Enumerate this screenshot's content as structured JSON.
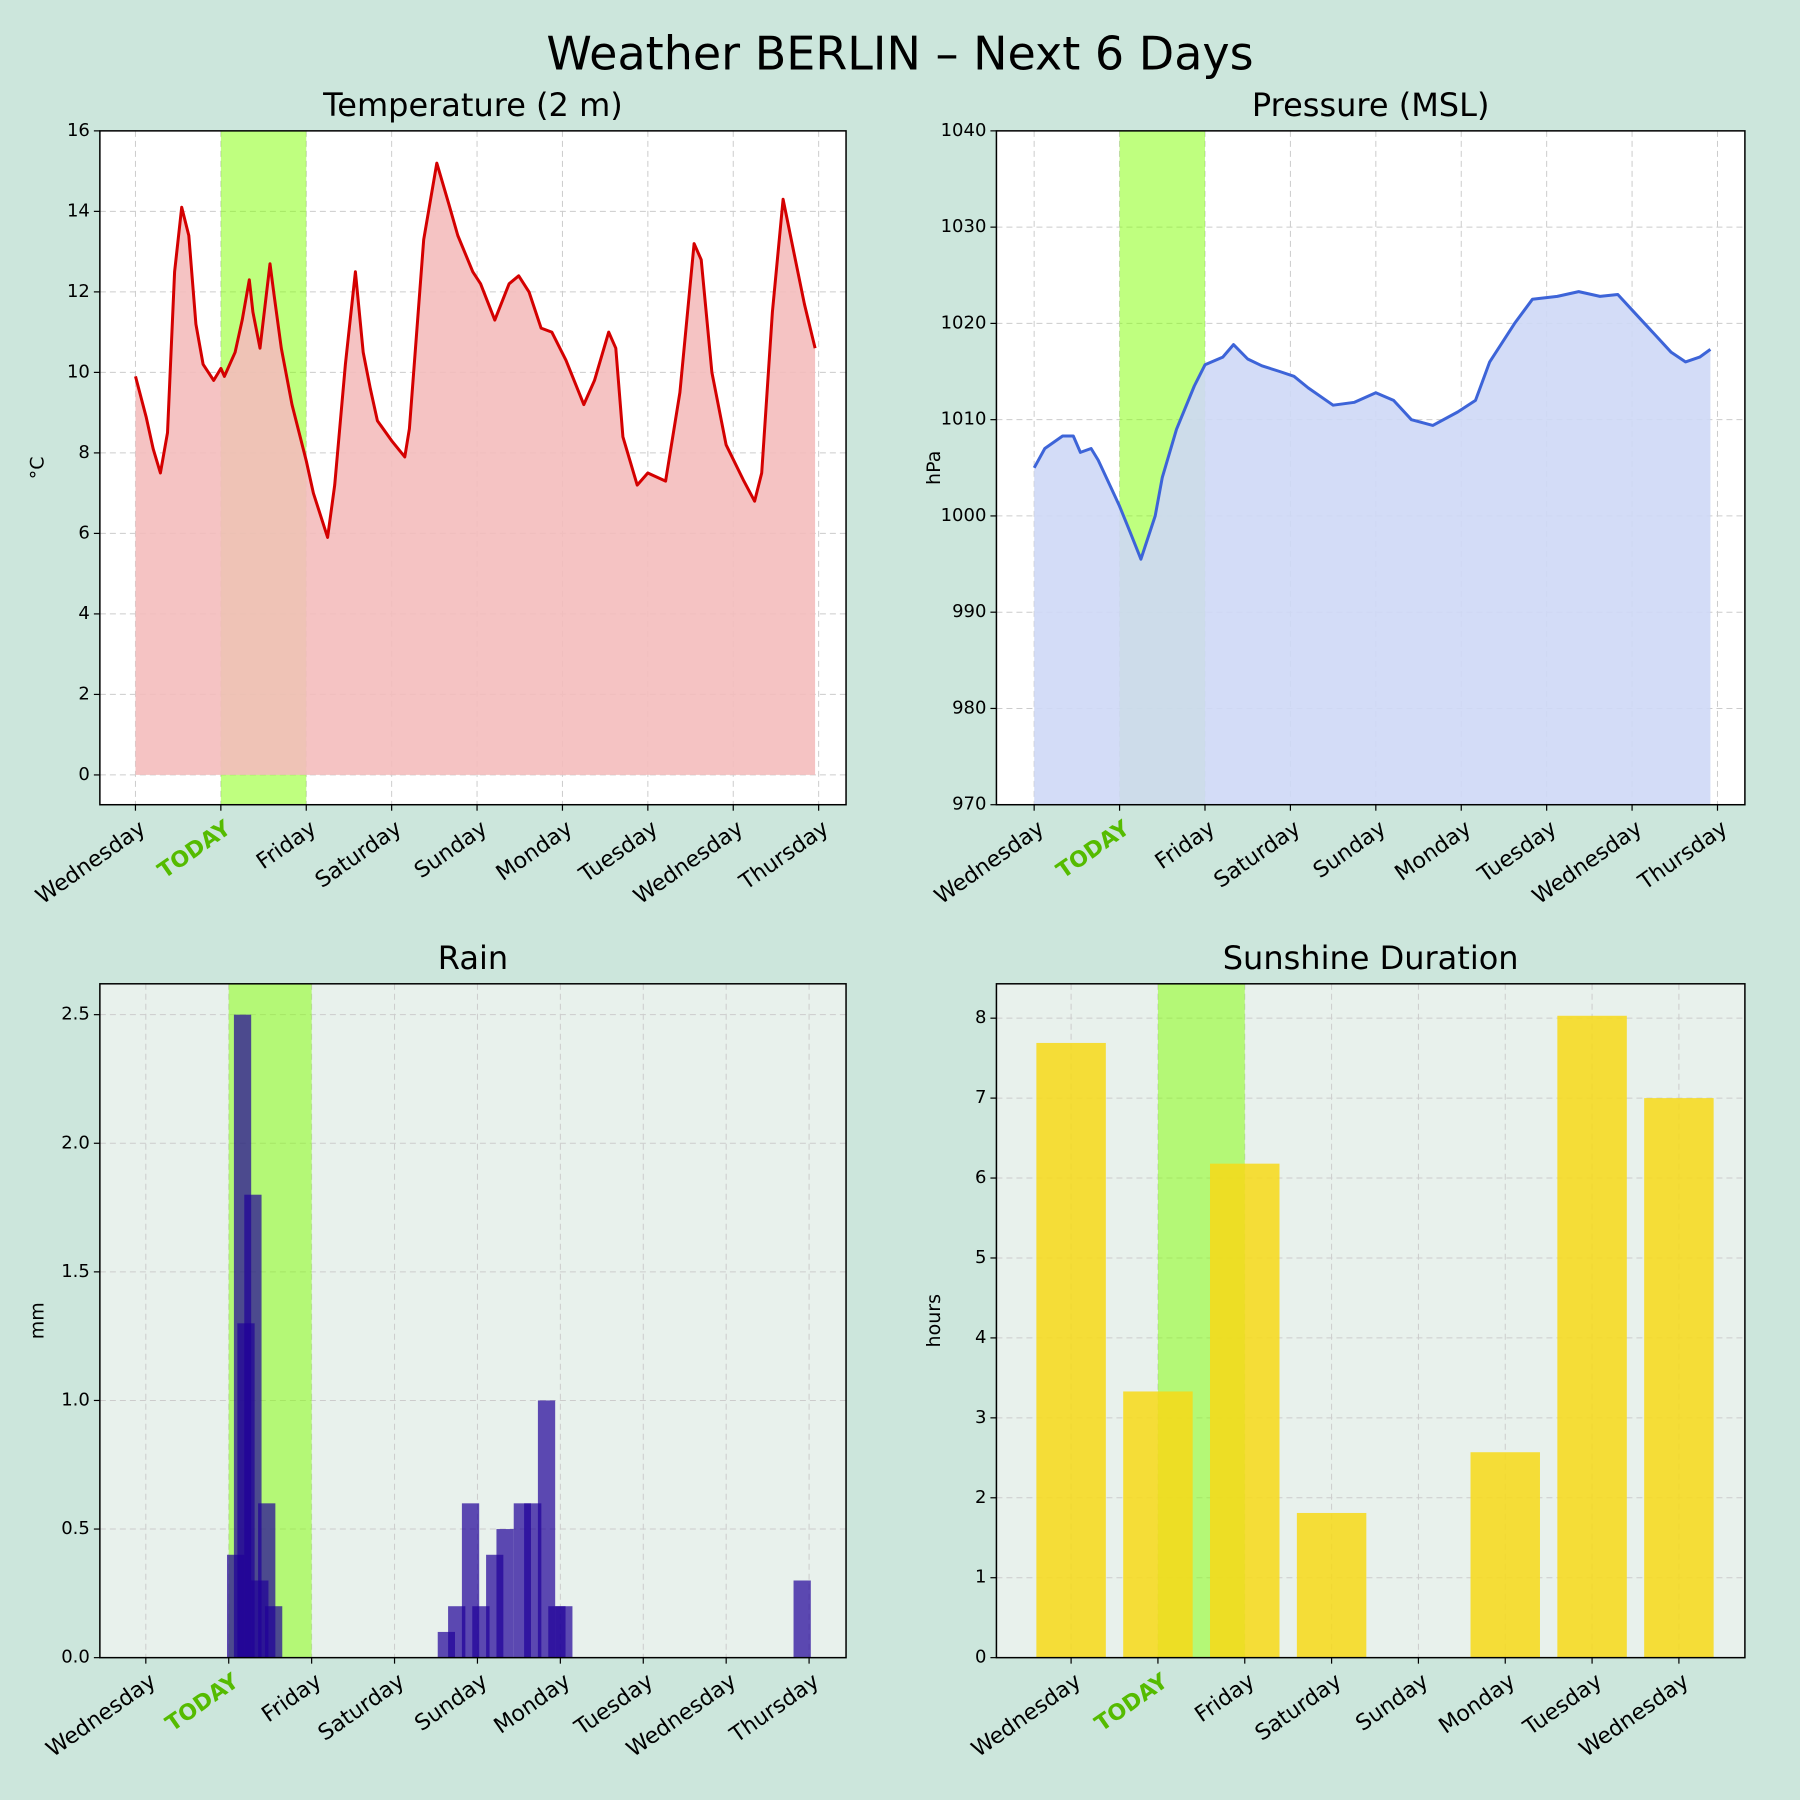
{
  "title": "Weather BERLIN – Next 6 Days",
  "chart_data": [
    {
      "type": "area",
      "title": "Temperature (2 m)",
      "ylabel": "°C",
      "color": "#d40000",
      "fill": "#f4bcbc",
      "facecolor": "#ffffff",
      "grid": true,
      "highlight": [
        24,
        48
      ],
      "highlight_color": "#7fff00",
      "highlight_label_color": "#55bb00",
      "xlim": [
        -10,
        199.7
      ],
      "ylim": [
        -0.74,
        16
      ],
      "yticks": [
        0,
        2,
        4,
        6,
        8,
        10,
        12,
        14,
        16
      ],
      "xticks": [
        {
          "value": 0,
          "label": "Wednesday"
        },
        {
          "value": 24,
          "label": "TODAY"
        },
        {
          "value": 48,
          "label": "Friday"
        },
        {
          "value": 72,
          "label": "Saturday"
        },
        {
          "value": 96,
          "label": "Sunday"
        },
        {
          "value": 120,
          "label": "Monday"
        },
        {
          "value": 144,
          "label": "Tuesday"
        },
        {
          "value": 168,
          "label": "Wednesday"
        },
        {
          "value": 192,
          "label": "Thursday"
        }
      ],
      "x": [
        0,
        3,
        5,
        7,
        9,
        11,
        13,
        15,
        17,
        19,
        22,
        24,
        25,
        28,
        30,
        32,
        33,
        35,
        37.8,
        39,
        41,
        44,
        48,
        50,
        54,
        56,
        59,
        61.8,
        64,
        66,
        68,
        72,
        75.7,
        77,
        81,
        84.7,
        88,
        90.6,
        94.8,
        97,
        101,
        105,
        107.7,
        110.6,
        114,
        117,
        121,
        126,
        129,
        133,
        135,
        137,
        141,
        144,
        149,
        153,
        157,
        159,
        162,
        166,
        171,
        174,
        176,
        179,
        182,
        185,
        188,
        191
      ],
      "values": [
        9.9,
        8.9,
        8.1,
        7.5,
        8.5,
        12.5,
        14.1,
        13.4,
        11.2,
        10.2,
        9.8,
        10.1,
        9.9,
        10.5,
        11.3,
        12.3,
        11.5,
        10.6,
        12.7,
        11.9,
        10.6,
        9.2,
        7.8,
        7.0,
        5.9,
        7.2,
        10.2,
        12.5,
        10.5,
        9.6,
        8.8,
        8.3,
        7.9,
        8.6,
        13.3,
        15.2,
        14.2,
        13.4,
        12.5,
        12.2,
        11.3,
        12.2,
        12.4,
        12.0,
        11.1,
        11.0,
        10.3,
        9.2,
        9.8,
        11.0,
        10.6,
        8.4,
        7.2,
        7.5,
        7.3,
        9.5,
        13.2,
        12.8,
        10.0,
        8.2,
        7.3,
        6.8,
        7.5,
        11.5,
        14.3,
        13.0,
        11.7,
        10.6
      ]
    },
    {
      "type": "area",
      "title": "Pressure (MSL)",
      "ylabel": "hPa",
      "color": "#3d64d8",
      "fill": "#ced8f6",
      "facecolor": "#ffffff",
      "grid": true,
      "highlight": [
        24,
        48
      ],
      "highlight_color": "#7fff00",
      "highlight_label_color": "#55bb00",
      "xlim": [
        -10.6,
        199.7
      ],
      "ylim": [
        970,
        1040
      ],
      "yticks": [
        970,
        980,
        990,
        1000,
        1010,
        1020,
        1030,
        1040
      ],
      "xticks": [
        {
          "value": 0,
          "label": "Wednesday"
        },
        {
          "value": 24,
          "label": "TODAY"
        },
        {
          "value": 48,
          "label": "Friday"
        },
        {
          "value": 72,
          "label": "Saturday"
        },
        {
          "value": 96,
          "label": "Sunday"
        },
        {
          "value": 120,
          "label": "Monday"
        },
        {
          "value": 144,
          "label": "Tuesday"
        },
        {
          "value": 168,
          "label": "Wednesday"
        },
        {
          "value": 192,
          "label": "Thursday"
        }
      ],
      "x": [
        0,
        3,
        8,
        11,
        13,
        16,
        18,
        22,
        24,
        27,
        30,
        34,
        36,
        40,
        45,
        48,
        53,
        56,
        60,
        64,
        69,
        73,
        77,
        84,
        90,
        96,
        101,
        106,
        112,
        119,
        124,
        128,
        135,
        140,
        147,
        153,
        159,
        164,
        169,
        174,
        179,
        183,
        187,
        190
      ],
      "values": [
        1005,
        1007,
        1008.3,
        1008.3,
        1006.6,
        1007,
        1005.8,
        1002.6,
        1001,
        998.3,
        995.5,
        1000,
        1004,
        1009,
        1013.5,
        1015.7,
        1016.5,
        1017.8,
        1016.3,
        1015.6,
        1015,
        1014.5,
        1013.3,
        1011.5,
        1011.8,
        1012.8,
        1012,
        1010,
        1009.4,
        1010.8,
        1012,
        1016,
        1020,
        1022.5,
        1022.8,
        1023.3,
        1022.8,
        1023,
        1021,
        1019,
        1017,
        1016,
        1016.5,
        1017.3
      ]
    },
    {
      "type": "bar",
      "title": "Rain",
      "ylabel": "mm",
      "color": "#1f0099",
      "facecolor": "#e8f1ec",
      "grid": true,
      "bar_width": 5,
      "highlight": [
        24,
        48
      ],
      "highlight_color": "#7fff00",
      "highlight_label_color": "#55bb00",
      "xlim": [
        -13.3,
        202.7
      ],
      "ylim": [
        0,
        2.62
      ],
      "yticks": [
        {
          "value": 0,
          "label": "0.0"
        },
        0.5,
        {
          "value": 1,
          "label": "1.0"
        },
        1.5,
        {
          "value": 2,
          "label": "2.0"
        },
        2.5
      ],
      "xticks": [
        {
          "value": 0,
          "label": "Wednesday"
        },
        {
          "value": 24,
          "label": "TODAY"
        },
        {
          "value": 48,
          "label": "Friday"
        },
        {
          "value": 72,
          "label": "Saturday"
        },
        {
          "value": 96,
          "label": "Sunday"
        },
        {
          "value": 120,
          "label": "Monday"
        },
        {
          "value": 144,
          "label": "Tuesday"
        },
        {
          "value": 168,
          "label": "Wednesday"
        },
        {
          "value": 192,
          "label": "Thursday"
        }
      ],
      "x": [
        26,
        28,
        29,
        31,
        33,
        35,
        37,
        87,
        90,
        94,
        97,
        101,
        104,
        109,
        112,
        116,
        119,
        121,
        190
      ],
      "values": [
        0.4,
        2.5,
        1.3,
        1.8,
        0.3,
        0.6,
        0.2,
        0.1,
        0.2,
        0.6,
        0.2,
        0.4,
        0.5,
        0.6,
        0.6,
        1.0,
        0.2,
        0.2,
        0.3
      ]
    },
    {
      "type": "bar",
      "title": "Sunshine Duration",
      "ylabel": "hours",
      "color": "#f7d918",
      "facecolor": "#e8f1ec",
      "grid": true,
      "bar_width": 0.8,
      "highlight": [
        1,
        2
      ],
      "highlight_color": "#7fff00",
      "highlight_label_color": "#55bb00",
      "xlim": [
        -0.86,
        7.76
      ],
      "ylim": [
        0,
        8.43
      ],
      "yticks": [
        0,
        1,
        2,
        3,
        4,
        5,
        6,
        7,
        8
      ],
      "categories": [
        "Wednesday",
        "TODAY",
        "Friday",
        "Saturday",
        "Sunday",
        "Monday",
        "Tuesday",
        "Wednesday"
      ],
      "values": [
        7.69,
        3.33,
        6.18,
        1.81,
        0,
        2.57,
        8.03,
        7.0
      ]
    }
  ]
}
